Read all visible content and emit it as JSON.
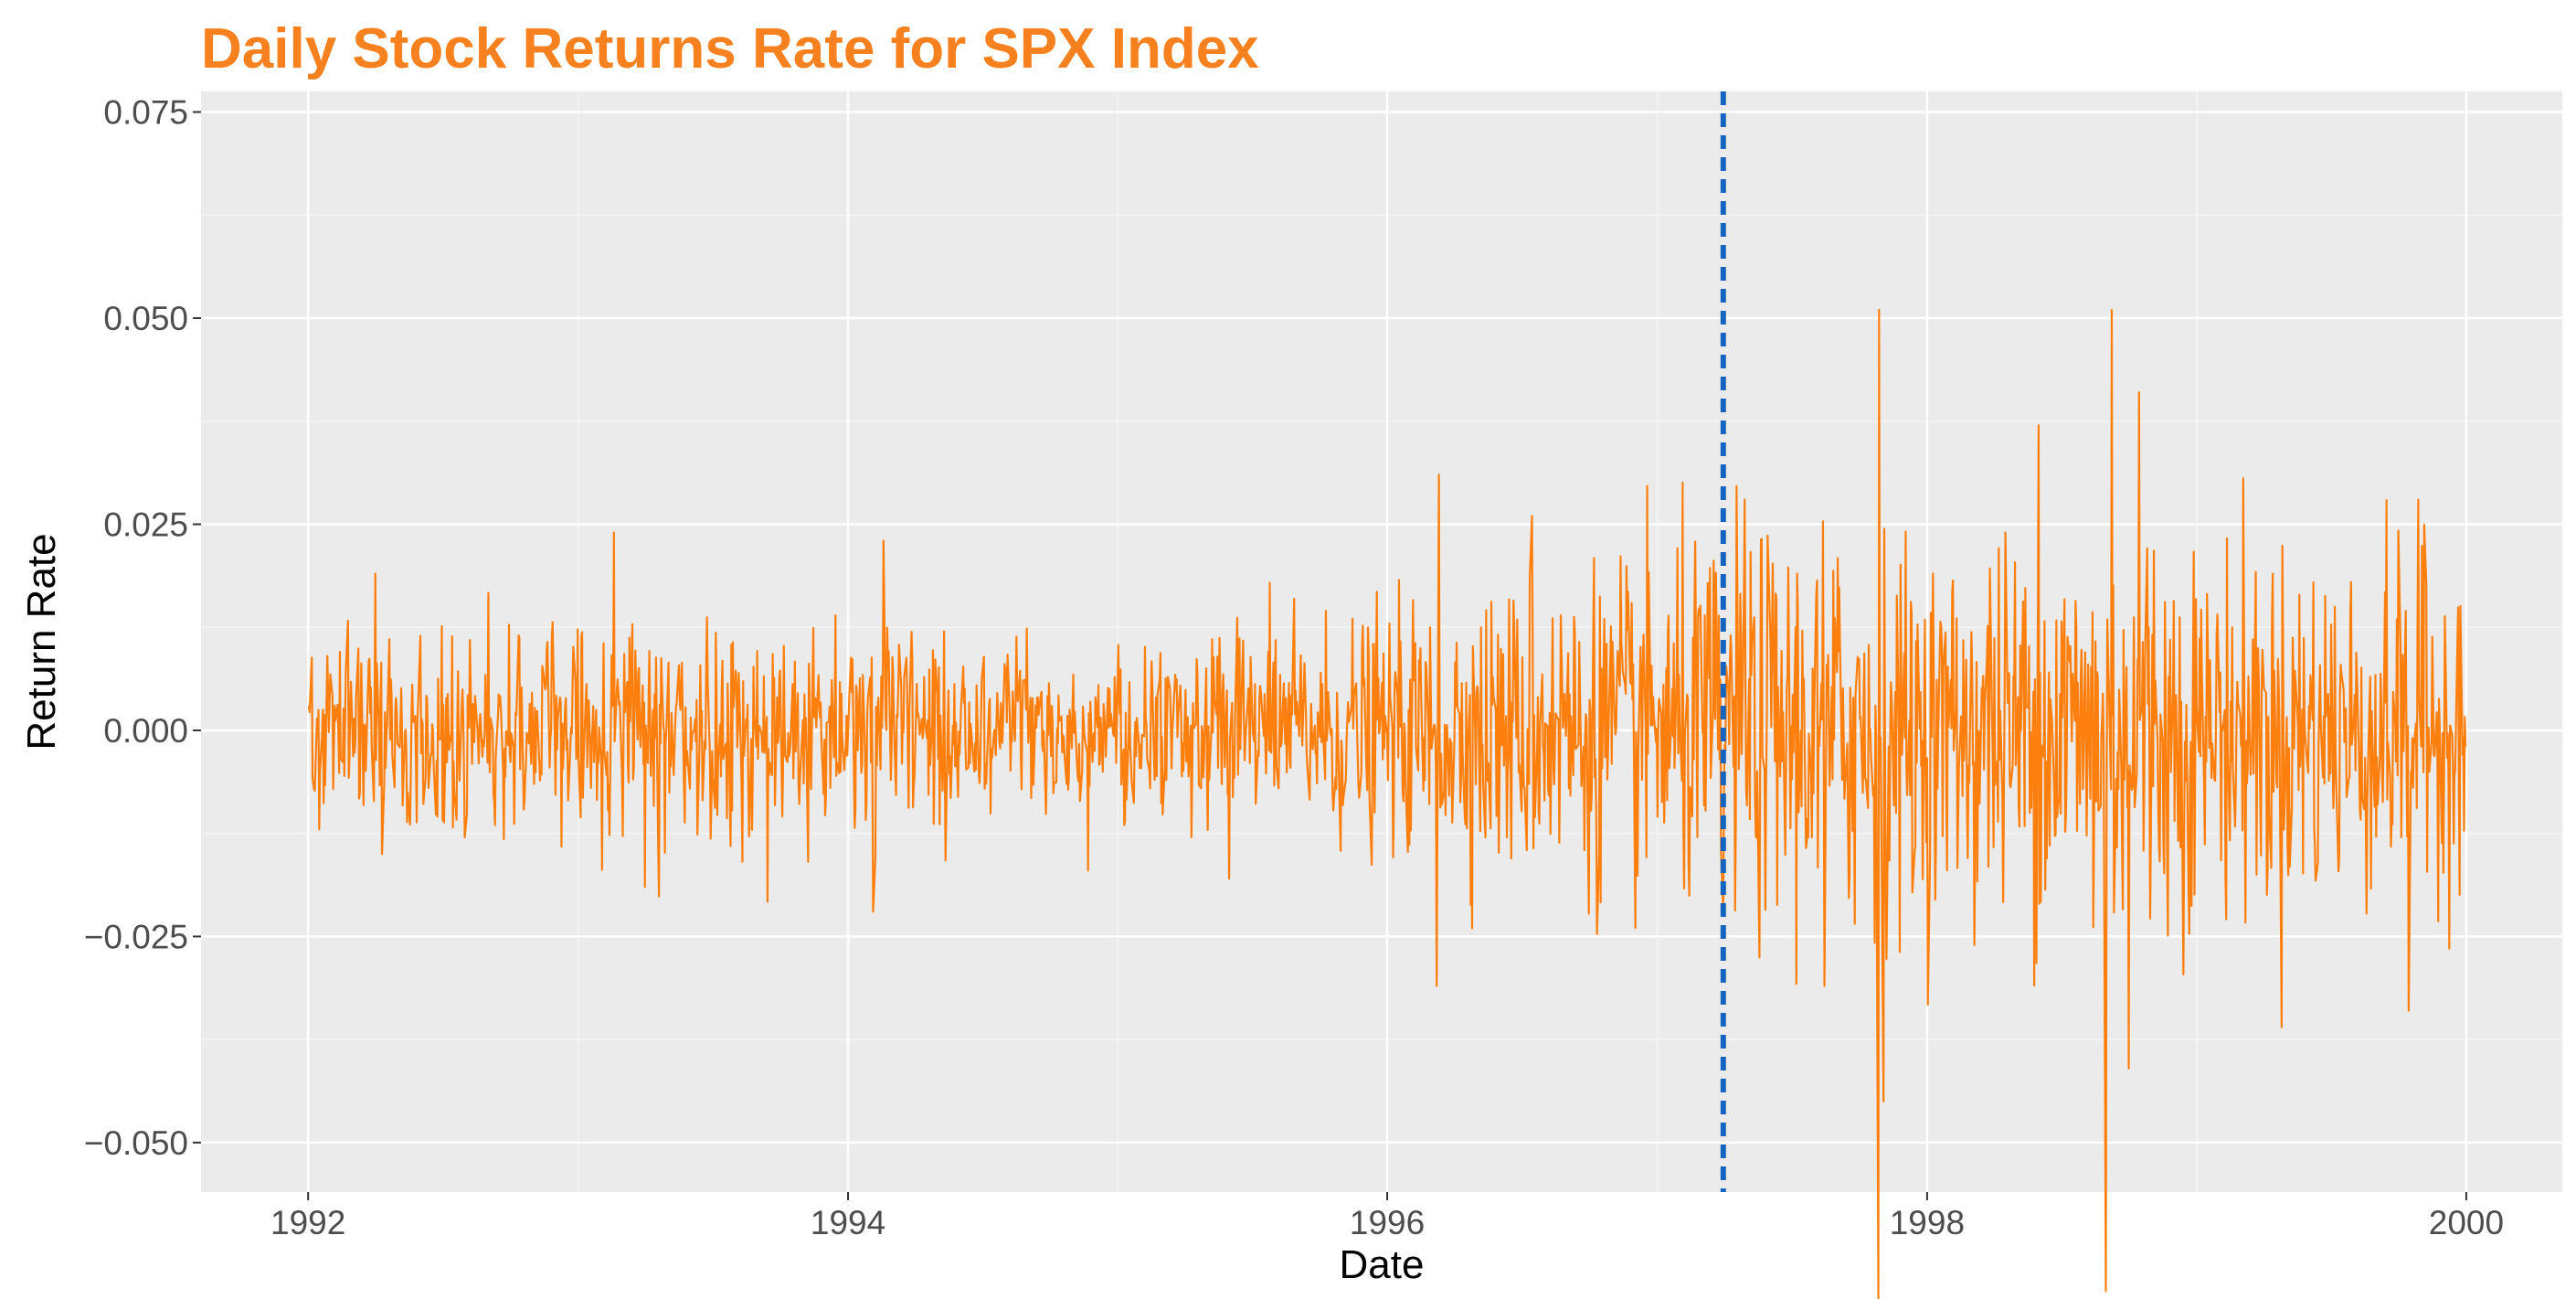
{
  "title": "Daily Stock Returns Rate for SPX Index",
  "colors": {
    "title": "#f7811f",
    "series": "#ff7f0e",
    "vline": "#1565c0",
    "panel": "#ebebeb",
    "grid_major": "#ffffff",
    "grid_minor": "#f5f5f5"
  },
  "chart_data": {
    "type": "line",
    "title": "Daily Stock Returns Rate for SPX Index",
    "xlabel": "Date",
    "ylabel": "Return Rate",
    "x_ticks": [
      "1992",
      "1994",
      "1996",
      "1998",
      "2000"
    ],
    "y_ticks": [
      "0.075",
      "0.050",
      "0.025",
      "0.000",
      "−0.025",
      "−0.050"
    ],
    "xlim": [
      "1991-08-09",
      "2000-05-10"
    ],
    "ylim": [
      -0.056,
      0.0775
    ],
    "grid": true,
    "legend": "none",
    "reference_line": {
      "type": "vertical",
      "style": "dashed",
      "x": "1997-03-31"
    },
    "series": [
      {
        "x_range": [
          "1992-01-02",
          "1999-12-31"
        ],
        "frequency": "daily (trading days)",
        "segments": [
          {
            "x": "1992-01-02",
            "y": 0.003
          },
          {
            "x": "1992-04-01",
            "y": 0.019
          },
          {
            "x": "1992-04-10",
            "y": -0.015
          },
          {
            "x": "1993-02-18",
            "y": 0.024
          },
          {
            "x": "1993-04-01",
            "y": -0.019
          },
          {
            "x": "1994-02-04",
            "y": -0.022
          },
          {
            "x": "1994-02-18",
            "y": 0.023
          },
          {
            "x": "1994-11-22",
            "y": -0.017
          },
          {
            "x": "1995-06-01",
            "y": -0.018
          },
          {
            "x": "1996-03-08",
            "y": -0.031
          },
          {
            "x": "1996-03-11",
            "y": 0.031
          },
          {
            "x": "1996-07-15",
            "y": 0.026
          },
          {
            "x": "1997-03-31",
            "y": -0.022
          },
          {
            "x": "1997-04-29",
            "y": 0.028
          },
          {
            "x": "1997-08-15",
            "y": -0.031
          },
          {
            "x": "1997-10-27",
            "y": -0.069
          },
          {
            "x": "1997-10-28",
            "y": 0.051
          },
          {
            "x": "1997-11-03",
            "y": -0.045
          },
          {
            "x": "1998-06-01",
            "y": 0.037
          },
          {
            "x": "1998-08-31",
            "y": -0.068
          },
          {
            "x": "1998-09-08",
            "y": 0.051
          },
          {
            "x": "1998-10-15",
            "y": 0.041
          },
          {
            "x": "1998-10-01",
            "y": -0.041
          },
          {
            "x": "1999-10-15",
            "y": -0.034
          },
          {
            "x": "1999-10-28",
            "y": 0.028
          },
          {
            "x": "1999-12-31",
            "y": -0.002
          }
        ]
      }
    ]
  }
}
